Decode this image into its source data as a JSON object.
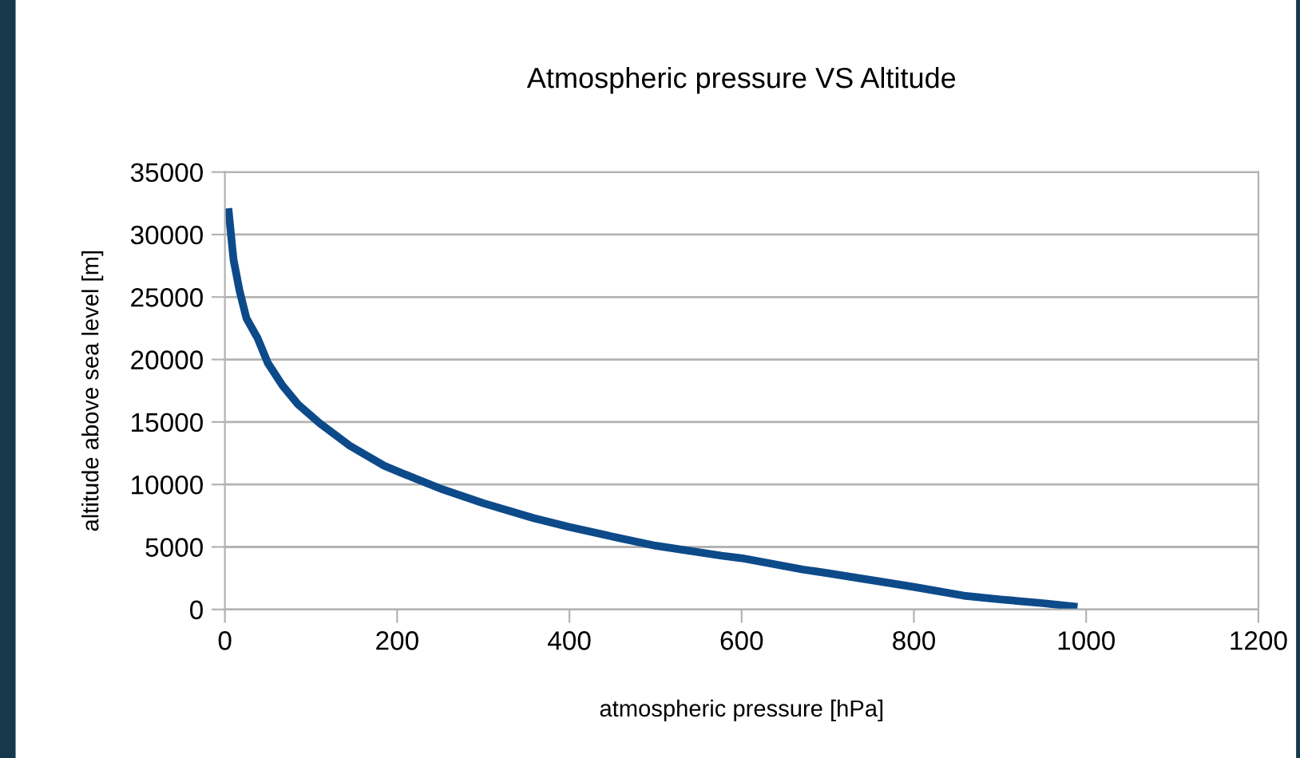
{
  "chart_data": {
    "type": "line",
    "title": "Atmospheric pressure VS Altitude",
    "xlabel": "atmospheric pressure [hPa]",
    "ylabel": "altitude above sea level [m]",
    "x": [
      4,
      10,
      17,
      25,
      38,
      50,
      67,
      85,
      110,
      145,
      185,
      220,
      253,
      300,
      359,
      400,
      452,
      500,
      577,
      600,
      671,
      700,
      764,
      800,
      858,
      900,
      950,
      990
    ],
    "series": [
      {
        "color": "#0d4a8a",
        "values": [
          32100,
          28000,
          25500,
          23300,
          21700,
          19700,
          17900,
          16400,
          14900,
          13100,
          11500,
          10500,
          9600,
          8500,
          7300,
          6600,
          5800,
          5100,
          4300,
          4100,
          3200,
          2900,
          2200,
          1800,
          1100,
          800,
          500,
          200
        ]
      }
    ],
    "xlim": [
      0,
      1200
    ],
    "xticks": [
      0,
      200,
      400,
      600,
      800,
      1000,
      1200
    ],
    "ylim": [
      0,
      35000
    ],
    "yticks": [
      0,
      5000,
      10000,
      15000,
      20000,
      25000,
      30000,
      35000
    ],
    "grid": "y",
    "marker": "none",
    "line_style": "solid",
    "legend": false
  }
}
